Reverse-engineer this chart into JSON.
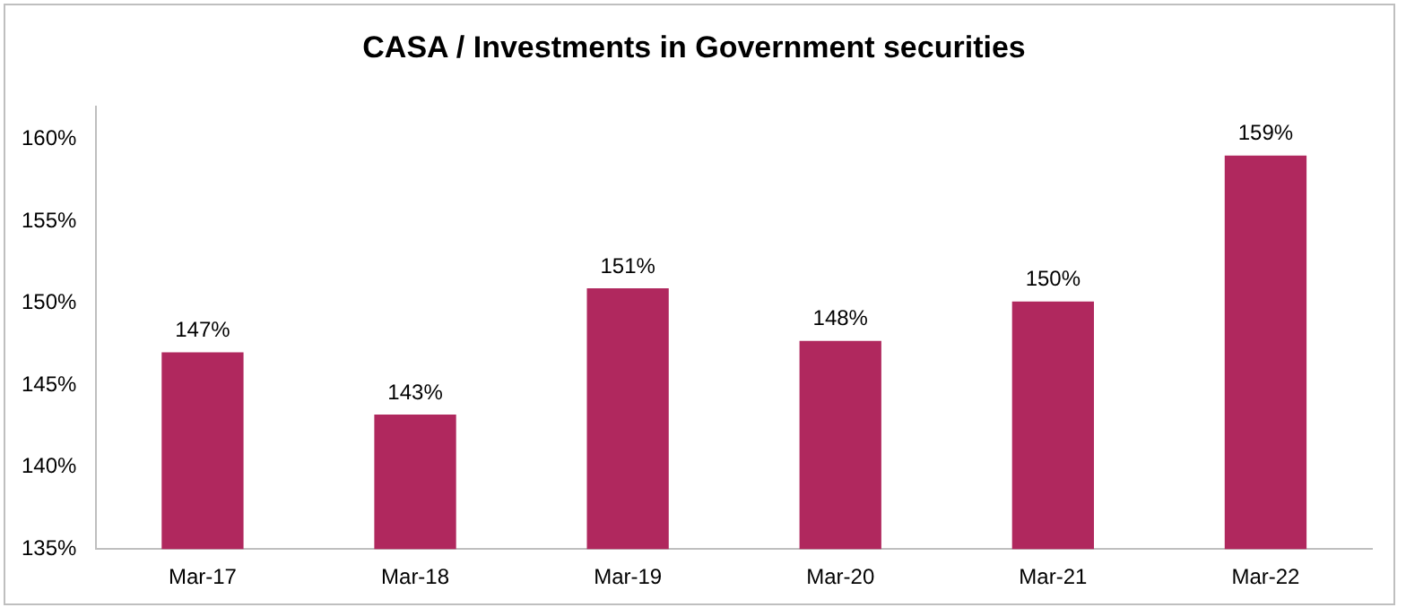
{
  "chart_data": {
    "type": "bar",
    "title": "CASA / Investments in Government securities",
    "categories": [
      "Mar-17",
      "Mar-18",
      "Mar-19",
      "Mar-20",
      "Mar-21",
      "Mar-22"
    ],
    "values": [
      147.0,
      143.2,
      150.9,
      147.7,
      150.1,
      159.0
    ],
    "value_labels": [
      "147%",
      "143%",
      "151%",
      "148%",
      "150%",
      "159%"
    ],
    "color": "#b0285e",
    "ylim": [
      135,
      162
    ],
    "yticks": [
      {
        "value": 135,
        "label": "135%"
      },
      {
        "value": 140,
        "label": "140%"
      },
      {
        "value": 145,
        "label": "145%"
      },
      {
        "value": 150,
        "label": "150%"
      },
      {
        "value": 155,
        "label": "155%"
      },
      {
        "value": 160,
        "label": "160%"
      }
    ],
    "grid": false,
    "legend": false
  }
}
